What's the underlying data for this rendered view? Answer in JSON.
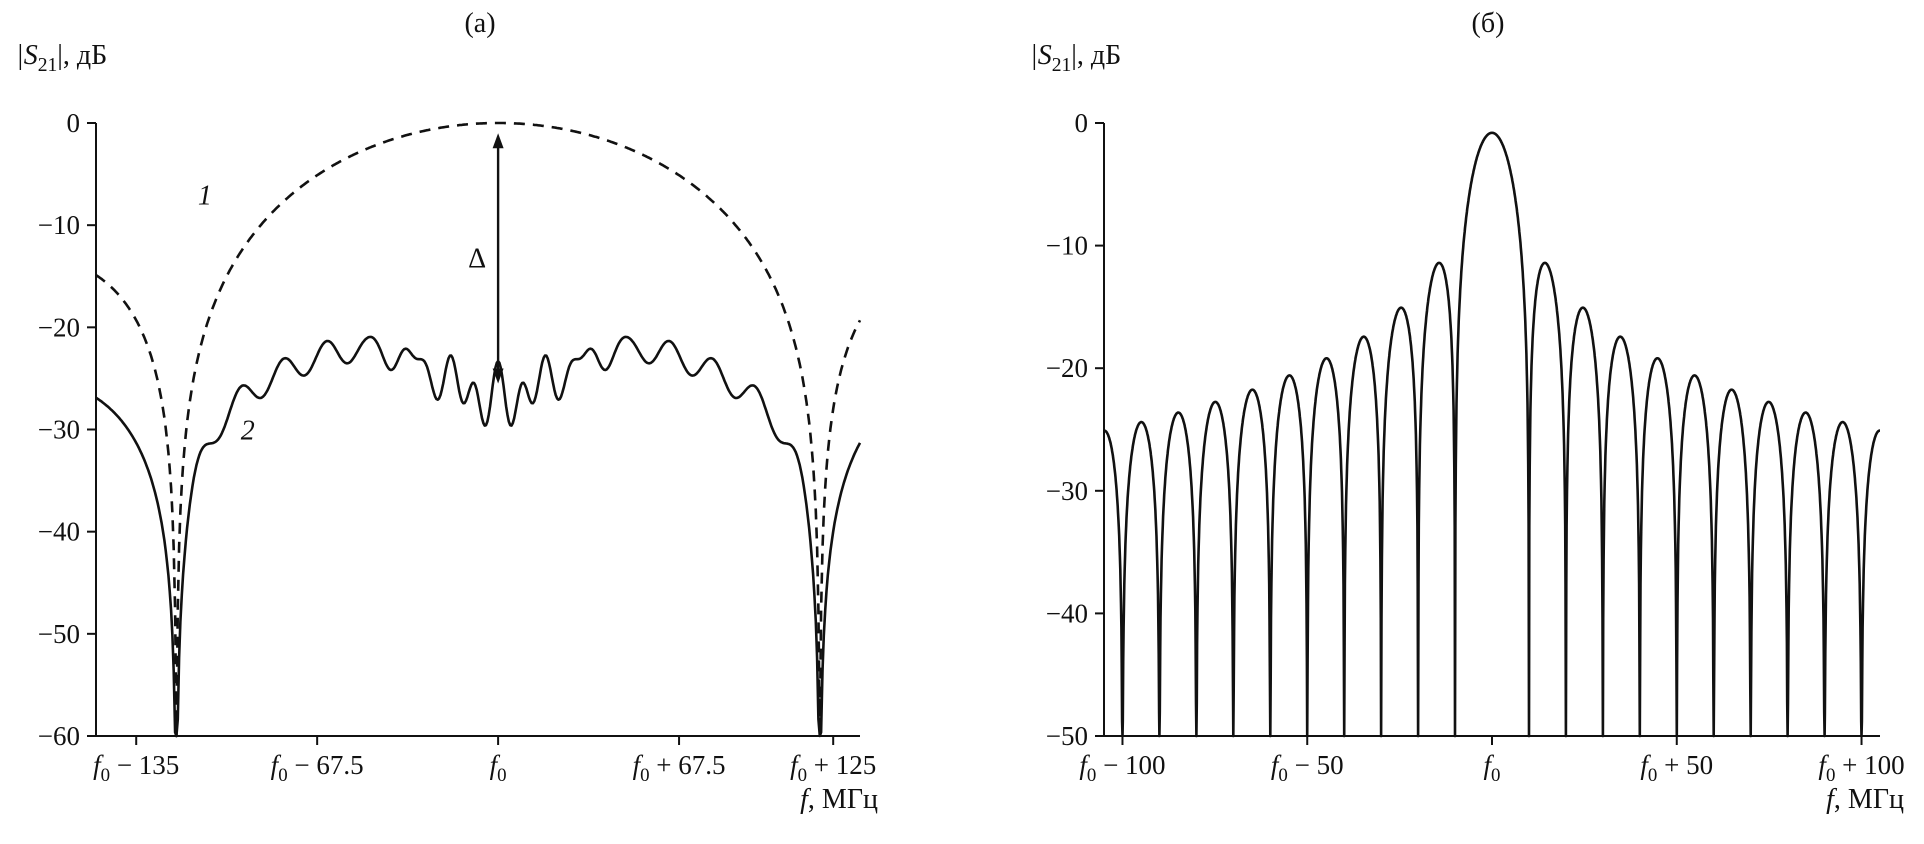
{
  "figure": {
    "background": "#ffffff",
    "ink": "#111111",
    "description": "Two frequency-response plots |S21| in dB versus frequency in MHz"
  },
  "chart_data": [
    {
      "id": "a",
      "type": "line",
      "title": "(а)",
      "ylabel_segments": [
        [
          "|S",
          "i"
        ],
        [
          "21",
          "sub"
        ],
        [
          "|, дБ",
          ""
        ]
      ],
      "xlabel_segments": [
        [
          "f",
          "i"
        ],
        [
          ", МГц",
          ""
        ]
      ],
      "x_range": [
        -150,
        135
      ],
      "y_range": [
        -60,
        0
      ],
      "grid": false,
      "x_ticks": [
        {
          "v": -135,
          "segments": [
            [
              "f",
              "i"
            ],
            [
              "0",
              "sub"
            ],
            [
              " − 135",
              ""
            ]
          ]
        },
        {
          "v": -67.5,
          "segments": [
            [
              "f",
              "i"
            ],
            [
              "0",
              "sub"
            ],
            [
              " − 67.5",
              ""
            ]
          ]
        },
        {
          "v": 0,
          "segments": [
            [
              "f",
              "i"
            ],
            [
              "0",
              "sub"
            ]
          ]
        },
        {
          "v": 67.5,
          "segments": [
            [
              "f",
              "i"
            ],
            [
              "0",
              "sub"
            ],
            [
              " + 67.5",
              ""
            ]
          ]
        },
        {
          "v": 125,
          "segments": [
            [
              "f",
              "i"
            ],
            [
              "0",
              "sub"
            ],
            [
              " + 125",
              ""
            ]
          ]
        }
      ],
      "y_ticks": [
        {
          "v": 0,
          "label": "0"
        },
        {
          "v": -10,
          "label": "−10"
        },
        {
          "v": -20,
          "label": "−20"
        },
        {
          "v": -30,
          "label": "−30"
        },
        {
          "v": -40,
          "label": "−40"
        },
        {
          "v": -50,
          "label": "−50"
        },
        {
          "v": -60,
          "label": "−60"
        }
      ],
      "series": [
        {
          "key": "curve-1",
          "name": "1 (dashed, ideal response)",
          "style": "dashed",
          "model": "sinc_db",
          "params": {
            "x0": 120,
            "scale": 1,
            "offset": 0
          },
          "step": 0.5,
          "clip": -60,
          "null_positions": [
            -120,
            120
          ],
          "readings": [
            [
              -150,
              -14.9
            ],
            [
              -135,
              -19.3
            ],
            [
              -120,
              -60
            ],
            [
              -90,
              -10.5
            ],
            [
              -60,
              -3.9
            ],
            [
              -30,
              -0.9
            ],
            [
              0,
              0
            ],
            [
              30,
              -0.9
            ],
            [
              60,
              -3.9
            ],
            [
              90,
              -10.5
            ],
            [
              120,
              -60
            ],
            [
              135,
              -19.3
            ]
          ]
        },
        {
          "key": "curve-2",
          "name": "2 (solid, measured response with losses)",
          "style": "solid",
          "model": "bandpass_ripple",
          "params": {
            "x0": 120,
            "level": -25,
            "ripple_amp": 1.3,
            "ripple_period": 16,
            "hump_amp": 3,
            "hump_center": 50,
            "hump_width": 35,
            "dip_amp": 5,
            "dip_width": 28,
            "dip_period": 9,
            "outband_offset": -12
          },
          "step": 0.5,
          "clip": -60,
          "null_positions": [
            -120,
            120
          ],
          "readings": [
            [
              -150,
              -27
            ],
            [
              -120,
              -60
            ],
            [
              -90,
              -24
            ],
            [
              -45,
              -23
            ],
            [
              -5,
              -30
            ],
            [
              0,
              -24
            ],
            [
              45,
              -23
            ],
            [
              90,
              -24
            ],
            [
              120,
              -60
            ],
            [
              135,
              -31
            ]
          ]
        }
      ],
      "annotations": [
        {
          "type": "varrow",
          "x": 0,
          "y1": -1,
          "y2": -25.5,
          "label": "Δ",
          "value_db": 26
        },
        {
          "type": "text",
          "x": -112,
          "y": -8,
          "text": "1",
          "italic": true
        },
        {
          "type": "text",
          "x": -96,
          "y": -31,
          "text": "2",
          "italic": true
        }
      ]
    },
    {
      "id": "b",
      "type": "line",
      "title": "(б)",
      "ylabel_segments": [
        [
          "|S",
          "i"
        ],
        [
          "21",
          "sub"
        ],
        [
          "|, дБ",
          ""
        ]
      ],
      "xlabel_segments": [
        [
          "f",
          "i"
        ],
        [
          ", МГц",
          ""
        ]
      ],
      "x_range": [
        -105,
        105
      ],
      "y_range": [
        -50,
        0
      ],
      "grid": false,
      "x_ticks": [
        {
          "v": -100,
          "segments": [
            [
              "f",
              "i"
            ],
            [
              "0",
              "sub"
            ],
            [
              " − 100",
              ""
            ]
          ]
        },
        {
          "v": -50,
          "segments": [
            [
              "f",
              "i"
            ],
            [
              "0",
              "sub"
            ],
            [
              " − 50",
              ""
            ]
          ]
        },
        {
          "v": 0,
          "segments": [
            [
              "f",
              "i"
            ],
            [
              "0",
              "sub"
            ]
          ]
        },
        {
          "v": 50,
          "segments": [
            [
              "f",
              "i"
            ],
            [
              "0",
              "sub"
            ],
            [
              " + 50",
              ""
            ]
          ]
        },
        {
          "v": 100,
          "segments": [
            [
              "f",
              "i"
            ],
            [
              "0",
              "sub"
            ],
            [
              " + 100",
              ""
            ]
          ]
        }
      ],
      "y_ticks": [
        {
          "v": 0,
          "label": "0"
        },
        {
          "v": -10,
          "label": "−10"
        },
        {
          "v": -20,
          "label": "−20"
        },
        {
          "v": -30,
          "label": "−30"
        },
        {
          "v": -40,
          "label": "−40"
        },
        {
          "v": -50,
          "label": "−50"
        }
      ],
      "series": [
        {
          "key": "response",
          "name": "sinc-like |S21| response",
          "style": "solid",
          "model": "sinc_db",
          "params": {
            "x0": 10,
            "scale": 0.8,
            "offset": -0.8
          },
          "step": 0.1,
          "clip": -50,
          "main_lobe_peak_db": -0.8,
          "null_spacing_mhz": 10,
          "sidelobe_peaks_db": [
            -11.5,
            -15.1,
            -17.5,
            -19.3,
            -20.8,
            -22.0,
            -23.0,
            -23.8,
            -24.6
          ],
          "readings": [
            [
              -95,
              -24.6
            ],
            [
              -75,
              -23
            ],
            [
              -55,
              -20.8
            ],
            [
              -35,
              -17.5
            ],
            [
              -15,
              -11.5
            ],
            [
              0,
              -0.8
            ],
            [
              15,
              -11.5
            ],
            [
              35,
              -17.5
            ],
            [
              55,
              -20.8
            ],
            [
              75,
              -23
            ],
            [
              95,
              -24.6
            ]
          ]
        }
      ],
      "annotations": []
    }
  ]
}
